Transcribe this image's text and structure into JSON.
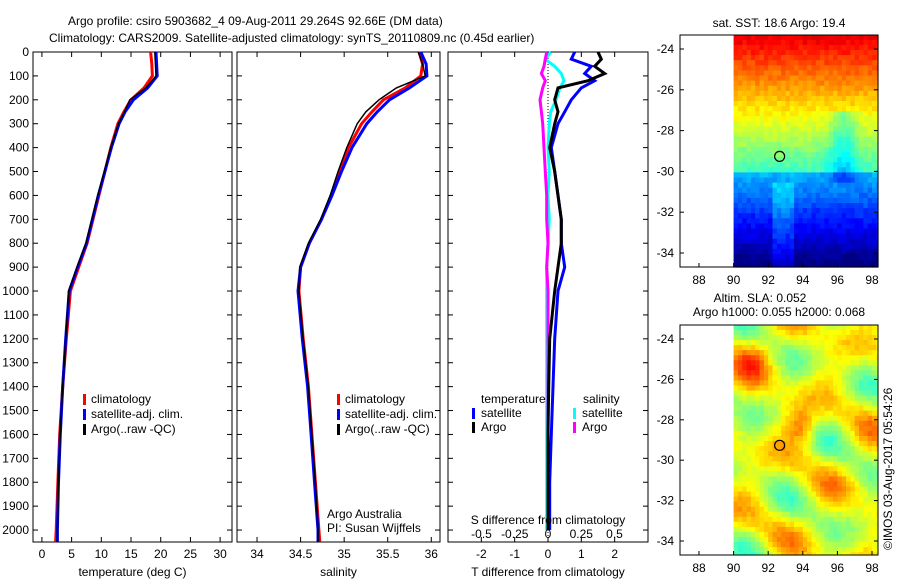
{
  "title_line1": "Argo profile: csiro 5903682_4 09-Aug-2011 29.264S 92.66E (DM data)",
  "title_line2": "Climatology: CARS2009. Satellite-adjusted climatology: synTS_20110809.nc (0.45d earlier)",
  "colors": {
    "climatology": "#ff0000",
    "satellite": "#0000ff",
    "argo": "#000000",
    "sal_satellite": "#00ffff",
    "sal_argo": "#ff00ff"
  },
  "chart_data": [
    {
      "type": "line",
      "name": "temperature-profile",
      "xlabel": "temperature (deg C)",
      "ylabel": "depth",
      "xlim": [
        -1.5,
        32
      ],
      "ylim": [
        2050,
        0
      ],
      "xticks": [
        "0",
        "5",
        "10",
        "15",
        "20",
        "25",
        "30"
      ],
      "xtick_values": [
        0,
        5,
        10,
        15,
        20,
        25,
        30
      ],
      "yticks": [
        "0",
        "100",
        "200",
        "300",
        "400",
        "500",
        "600",
        "700",
        "800",
        "900",
        "1000",
        "1100",
        "1200",
        "1300",
        "1400",
        "1500",
        "1600",
        "1700",
        "1800",
        "1900",
        "2000"
      ],
      "depth": [
        0,
        50,
        100,
        150,
        200,
        250,
        300,
        400,
        500,
        600,
        700,
        800,
        900,
        1000,
        1200,
        1400,
        1600,
        1800,
        2000,
        2050
      ],
      "series": [
        {
          "name": "climatology",
          "values": [
            18.3,
            18.5,
            18.6,
            17.2,
            15.0,
            13.8,
            12.8,
            11.6,
            10.6,
            9.6,
            8.6,
            7.6,
            6.2,
            4.8,
            4.1,
            3.5,
            3.0,
            2.7,
            2.4,
            2.3
          ]
        },
        {
          "name": "satellite-adj. clim.",
          "values": [
            19.2,
            19.3,
            19.4,
            17.8,
            15.4,
            14.0,
            13.0,
            11.7,
            10.6,
            9.5,
            8.5,
            7.5,
            6.0,
            4.6,
            4.0,
            3.5,
            3.1,
            2.8,
            2.6,
            2.6
          ]
        },
        {
          "name": "Argo(..raw -QC)",
          "values": [
            19.0,
            19.1,
            19.2,
            17.5,
            14.8,
            13.9,
            12.9,
            11.6,
            10.5,
            9.4,
            8.4,
            7.4,
            5.9,
            4.5,
            4.0,
            3.5,
            3.1,
            2.8,
            2.6,
            2.6
          ]
        }
      ],
      "legend": [
        "climatology",
        "satellite-adj. clim.",
        "Argo(..raw -QC)"
      ]
    },
    {
      "type": "line",
      "name": "salinity-profile",
      "xlabel": "salinity",
      "xlim": [
        33.77,
        36.1
      ],
      "ylim": [
        2050,
        0
      ],
      "xticks": [
        "34",
        "34.5",
        "35",
        "35.5",
        "36"
      ],
      "xtick_values": [
        34,
        34.5,
        35,
        35.5,
        36
      ],
      "depth": [
        0,
        50,
        100,
        150,
        200,
        250,
        300,
        400,
        500,
        600,
        700,
        800,
        900,
        1000,
        1200,
        1400,
        1600,
        1800,
        2000,
        2050
      ],
      "series": [
        {
          "name": "climatology",
          "values": [
            35.86,
            35.9,
            35.88,
            35.7,
            35.45,
            35.32,
            35.2,
            35.05,
            34.95,
            34.85,
            34.74,
            34.6,
            34.5,
            34.48,
            34.53,
            34.59,
            34.63,
            34.67,
            34.71,
            34.72
          ]
        },
        {
          "name": "satellite-adj. clim.",
          "values": [
            35.88,
            35.94,
            35.95,
            35.75,
            35.52,
            35.38,
            35.26,
            35.09,
            34.97,
            34.86,
            34.74,
            34.6,
            34.5,
            34.47,
            34.52,
            34.58,
            34.62,
            34.66,
            34.7,
            34.7
          ]
        },
        {
          "name": "Argo(..raw -QC)",
          "values": [
            35.85,
            35.9,
            35.93,
            35.6,
            35.4,
            35.25,
            35.15,
            35.03,
            34.93,
            34.84,
            34.73,
            34.59,
            34.49,
            34.48,
            34.53,
            34.59,
            34.63,
            34.67,
            34.7,
            34.7
          ]
        }
      ],
      "legend": [
        "climatology",
        "satellite-adj. clim.",
        "Argo(..raw -QC)"
      ],
      "annotation": [
        "Argo Australia",
        "PI: Susan Wijffels"
      ]
    },
    {
      "type": "line",
      "name": "difference-profile",
      "xlabel": "T difference from climatology",
      "xlabel2": "S difference from climatology",
      "xlim": [
        -3,
        3
      ],
      "ylim": [
        2050,
        0
      ],
      "xticks": [
        "-2",
        "-1",
        "0",
        "1",
        "2"
      ],
      "xtick_values": [
        -2,
        -1,
        0,
        1,
        2
      ],
      "xticks2": [
        "-0.5",
        "-0.25",
        "0",
        "0.25",
        "0.5"
      ],
      "xtick2_values": [
        -0.5,
        -0.25,
        0,
        0.25,
        0.5
      ],
      "depth": [
        0,
        30,
        60,
        90,
        120,
        150,
        200,
        250,
        300,
        400,
        500,
        600,
        700,
        800,
        900,
        1000,
        1200,
        1400,
        1600,
        1800,
        2000
      ],
      "series": [
        {
          "name": "temperature satellite",
          "values": [
            0.8,
            0.7,
            1.3,
            1.1,
            1.4,
            1.0,
            0.7,
            0.5,
            0.3,
            0.1,
            0.2,
            0.3,
            0.4,
            0.4,
            0.5,
            0.3,
            0.2,
            0.15,
            0.1,
            0.05,
            0.05
          ]
        },
        {
          "name": "temperature Argo",
          "values": [
            1.5,
            1.6,
            1.4,
            1.7,
            1.2,
            0.3,
            0.2,
            0.3,
            0.2,
            0.05,
            0.2,
            0.3,
            0.4,
            0.4,
            0.3,
            0.2,
            0.05,
            0.02,
            0.0,
            0.0,
            0.0
          ]
        },
        {
          "name": "salinity satellite",
          "values": [
            0.02,
            -0.02,
            0.05,
            0.1,
            0.12,
            0.09,
            0.06,
            0.02,
            0.01,
            0.0,
            0.01,
            0.0,
            0.01,
            0.0,
            -0.01,
            -0.01,
            -0.01,
            -0.01,
            -0.01,
            -0.01,
            -0.01
          ]
        },
        {
          "name": "salinity Argo",
          "values": [
            -0.01,
            -0.02,
            -0.03,
            -0.05,
            -0.02,
            -0.04,
            -0.06,
            -0.05,
            -0.04,
            -0.03,
            -0.02,
            -0.01,
            -0.01,
            0.0,
            -0.01,
            0.0,
            0.0,
            0.0,
            0.0,
            0.0,
            0.0
          ]
        }
      ],
      "legend": {
        "temperature_title": "temperature",
        "salinity_title": "salinity",
        "satellite": "satellite",
        "argo": "Argo"
      }
    }
  ],
  "maps": [
    {
      "name": "sst-map",
      "title": "sat. SST: 18.6 Argo: 19.4",
      "xticks": [
        "88",
        "90",
        "92",
        "94",
        "96",
        "98"
      ],
      "yticks": [
        "-24",
        "-26",
        "-28",
        "-30",
        "-32",
        "-34"
      ],
      "float_lon": 92.66,
      "float_lat": -29.264
    },
    {
      "name": "sla-map",
      "title1": "Altim. SLA: 0.052",
      "title2": "Argo h1000: 0.055 h2000: 0.068",
      "xticks": [
        "88",
        "90",
        "92",
        "94",
        "96",
        "98"
      ],
      "yticks": [
        "-24",
        "-26",
        "-28",
        "-30",
        "-32",
        "-34"
      ],
      "float_lon": 92.66,
      "float_lat": -29.264
    }
  ],
  "credit": "©IMOS 03-Aug-2017 05:54:26"
}
